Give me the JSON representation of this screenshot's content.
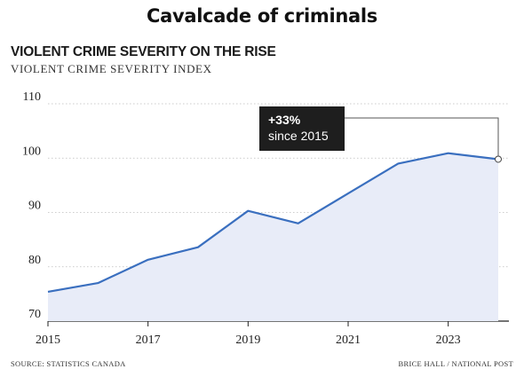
{
  "header": {
    "title": "Cavalcade of criminals"
  },
  "chart_data": {
    "type": "area",
    "title": "VIOLENT CRIME SEVERITY ON THE RISE",
    "subtitle": "VIOLENT CRIME SEVERITY INDEX",
    "xlabel": "",
    "ylabel": "",
    "x": [
      2015,
      2016,
      2017,
      2018,
      2019,
      2020,
      2021,
      2022,
      2023,
      2024
    ],
    "series": [
      {
        "values": [
          75.4,
          77.0,
          81.3,
          83.6,
          90.3,
          88.0,
          93.5,
          99.0,
          100.9,
          99.8
        ]
      }
    ],
    "xlim": [
      2015,
      2024
    ],
    "ylim": [
      70,
      110
    ],
    "x_ticks": [
      "2015",
      "2017",
      "2019",
      "2021",
      "2023"
    ],
    "y_ticks": [
      "70",
      "80",
      "90",
      "100",
      "110"
    ],
    "grid": true,
    "line_color": "#3a6fbf",
    "fill_color": "#e8ecf8",
    "annotation": {
      "value": "+33%",
      "text": "since 2015"
    }
  },
  "footer": {
    "source": "SOURCE: STATISTICS CANADA",
    "credit": "BRICE HALL / NATIONAL POST"
  }
}
